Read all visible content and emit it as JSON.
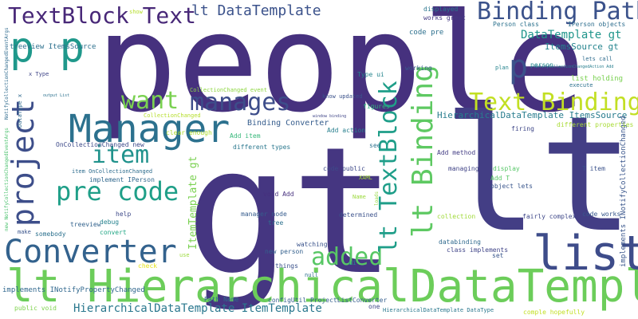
{
  "words": [
    {
      "text": "people",
      "color": "#46317e"
    },
    {
      "text": "gt",
      "color": "#453681"
    },
    {
      "text": "lt",
      "color": "#433e85"
    },
    {
      "text": "lt HierarchicalDataTemplate",
      "color": "#6ccd5a"
    },
    {
      "text": "Manager",
      "color": "#2c718e"
    },
    {
      "text": "list",
      "color": "#3e4c8a"
    },
    {
      "text": "Converter",
      "color": "#33628d"
    },
    {
      "text": "p p",
      "color": "#1f988b"
    },
    {
      "text": "p",
      "color": "#3b528b"
    },
    {
      "text": "TextBlock Text",
      "color": "#482878"
    },
    {
      "text": "Binding Path",
      "color": "#3b528b"
    },
    {
      "text": "manages",
      "color": "#3d4d8a"
    },
    {
      "text": "want",
      "color": "#7ad151"
    },
    {
      "text": "project",
      "color": "#3d4e8a"
    },
    {
      "text": "item",
      "color": "#20928c"
    },
    {
      "text": "pre code",
      "color": "#1f9f88"
    },
    {
      "text": "added",
      "color": "#58c765"
    },
    {
      "text": "lt Binding",
      "color": "#5ec962"
    },
    {
      "text": "lt TextBlock",
      "color": "#1f9e89"
    },
    {
      "text": "Text Binding",
      "color": "#c2df23"
    },
    {
      "text": "lt DataTemplate",
      "color": "#3b528b"
    },
    {
      "text": "DataTemplate gt",
      "color": "#1f958b"
    },
    {
      "text": "ItemsSource gt",
      "color": "#25848e"
    },
    {
      "text": "HierarchicalDataTemplate ItemTemplate",
      "color": "#2a788e"
    },
    {
      "text": "HierarchicalDataTemplate ItemsSource",
      "color": "#287d8e"
    },
    {
      "text": "ItemTemplate gt",
      "color": "#7ad151"
    },
    {
      "text": "implements INotifyPropertyChanged",
      "color": "#31688e"
    },
    {
      "text": "implements INotifyCollectionChanged",
      "color": "#39568c"
    },
    {
      "text": "Binding Converter",
      "color": "#365d8d"
    },
    {
      "text": "OnCollectionChanged new",
      "color": "#3e4a89"
    },
    {
      "text": "treeview ItemsSource",
      "color": "#2d708e"
    },
    {
      "text": "Path Name",
      "color": "#31688e"
    },
    {
      "text": "configUtil ProjectListConverter",
      "color": "#355f8d"
    },
    {
      "text": "HierarchicalDataTemplate DataType",
      "color": "#2a788e"
    },
    {
      "text": "code pre",
      "color": "#2d708e"
    },
    {
      "text": "works great",
      "color": "#443983"
    },
    {
      "text": "Person class",
      "color": "#2c728e"
    },
    {
      "text": "IPerson objects",
      "color": "#2e6e8e"
    },
    {
      "text": "displayed",
      "color": "#2a768e"
    },
    {
      "text": "show",
      "color": "#b5de2b"
    },
    {
      "text": "x Type",
      "color": "#404688"
    },
    {
      "text": "DataType x",
      "color": "#306a8e"
    },
    {
      "text": "Type ui",
      "color": "#25858e"
    },
    {
      "text": "working",
      "color": "#38588c"
    },
    {
      "text": "plan",
      "color": "#25848e"
    },
    {
      "text": "person",
      "color": "#23888e"
    },
    {
      "text": "lets call",
      "color": "#2f6c8e"
    },
    {
      "text": "execute",
      "color": "#2c718e"
    },
    {
      "text": "list holding",
      "color": "#7ad151"
    },
    {
      "text": "know updated",
      "color": "#3b528b"
    },
    {
      "text": "CollectionChanged event",
      "color": "#8fd744"
    },
    {
      "text": "CollectionChanged",
      "color": "#b5de2b"
    },
    {
      "text": "figures",
      "color": "#2fb47c"
    },
    {
      "text": "Add action",
      "color": "#277f8e"
    },
    {
      "text": "Add item",
      "color": "#35b779"
    },
    {
      "text": "different types",
      "color": "#2a778e"
    },
    {
      "text": "see",
      "color": "#2c728e"
    },
    {
      "text": "clear enough",
      "color": "#addc30"
    },
    {
      "text": "firing",
      "color": "#3f4788"
    },
    {
      "text": "different properties",
      "color": "#a8db34"
    },
    {
      "text": "check",
      "color": "#e5e419"
    },
    {
      "text": "item OnCollectionChanged",
      "color": "#2e6d8e"
    },
    {
      "text": "code public",
      "color": "#3e4989"
    },
    {
      "text": "Add method",
      "color": "#433d84"
    },
    {
      "text": "managing",
      "color": "#414487"
    },
    {
      "text": "display",
      "color": "#56c667"
    },
    {
      "text": "T item",
      "color": "#3b528b"
    },
    {
      "text": "Add T",
      "color": "#58c765"
    },
    {
      "text": "object lets",
      "color": "#39568c"
    },
    {
      "text": "implement IPerson",
      "color": "#31688e"
    },
    {
      "text": "XAML",
      "color": "#a2da37"
    },
    {
      "text": "Name",
      "color": "#9bd93c"
    },
    {
      "text": "void Add",
      "color": "#46307e"
    },
    {
      "text": "help",
      "color": "#3e4a89"
    },
    {
      "text": "debug",
      "color": "#26828e"
    },
    {
      "text": "treeview",
      "color": "#33638d"
    },
    {
      "text": "make",
      "color": "#3a548c"
    },
    {
      "text": "somebody",
      "color": "#2c718e"
    },
    {
      "text": "convert",
      "color": "#22a785"
    },
    {
      "text": "manager node",
      "color": "#365c8d"
    },
    {
      "text": "tree",
      "color": "#2d718e"
    },
    {
      "text": "determined",
      "color": "#3b528b"
    },
    {
      "text": "collection",
      "color": "#a0da39"
    },
    {
      "text": "fairly complex",
      "color": "#3f4889"
    },
    {
      "text": "code works",
      "color": "#38588c"
    },
    {
      "text": "use",
      "color": "#9bd93c"
    },
    {
      "text": "new person",
      "color": "#34608d"
    },
    {
      "text": "things",
      "color": "#3b528b"
    },
    {
      "text": "watching",
      "color": "#3a538b"
    },
    {
      "text": "ui",
      "color": "#23898e"
    },
    {
      "text": "databinding",
      "color": "#306a8e"
    },
    {
      "text": "class implements",
      "color": "#404588"
    },
    {
      "text": "set",
      "color": "#39568c"
    },
    {
      "text": "null",
      "color": "#2d708e"
    },
    {
      "text": "public void",
      "color": "#7fd34e"
    },
    {
      "text": "one",
      "color": "#3f4788"
    },
    {
      "text": "comple hopefully",
      "color": "#c2df23"
    },
    {
      "text": "new NotifyCollectionChangedEventArgs",
      "color": "#4ac16d"
    },
    {
      "text": "NotifyCollectionChangedEventArgs",
      "color": "#2f6b8e"
    },
    {
      "text": "NotifyCollectionChangedAction Add",
      "color": "#277e8e"
    },
    {
      "text": "output List",
      "color": "#2c718e"
    },
    {
      "text": "window binding",
      "color": "#404688"
    },
    {
      "text": "loads",
      "color": "#95d840"
    }
  ]
}
